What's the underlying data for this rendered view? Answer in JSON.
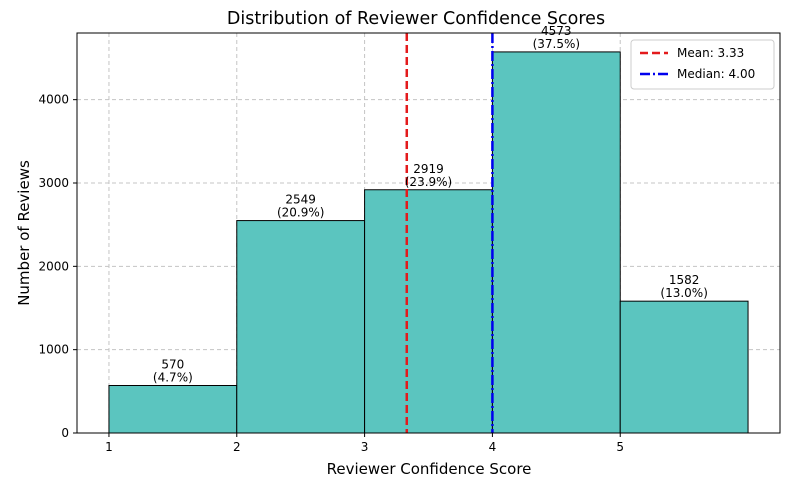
{
  "chart_data": {
    "type": "bar",
    "title": "Distribution of Reviewer Confidence Scores",
    "xlabel": "Reviewer Confidence Score",
    "ylabel": "Number of Reviews",
    "bins": [
      {
        "start": 1,
        "end": 2,
        "count": 570,
        "pct_label": "(4.7%)"
      },
      {
        "start": 2,
        "end": 3,
        "count": 2549,
        "pct_label": "(20.9%)"
      },
      {
        "start": 3,
        "end": 4,
        "count": 2919,
        "pct_label": "(23.9%)"
      },
      {
        "start": 4,
        "end": 5,
        "count": 4573,
        "pct_label": "(37.5%)"
      },
      {
        "start": 5,
        "end": 6,
        "count": 1582,
        "pct_label": "(13.0%)"
      }
    ],
    "xlim": [
      0.75,
      6.25
    ],
    "ylim": [
      0,
      4800
    ],
    "x_ticks": [
      1,
      2,
      3,
      4,
      5
    ],
    "y_ticks": [
      0,
      1000,
      2000,
      3000,
      4000
    ],
    "grid": true,
    "bar_color": "#5bc5bf",
    "reference_lines": [
      {
        "name": "Mean",
        "value": 3.33,
        "label": "Mean: 3.33",
        "color": "#e31a1c",
        "style": "dashed"
      },
      {
        "name": "Median",
        "value": 4.0,
        "label": "Median: 4.00",
        "color": "#0000ee",
        "style": "dashdot"
      }
    ],
    "legend_position": "top-right"
  }
}
